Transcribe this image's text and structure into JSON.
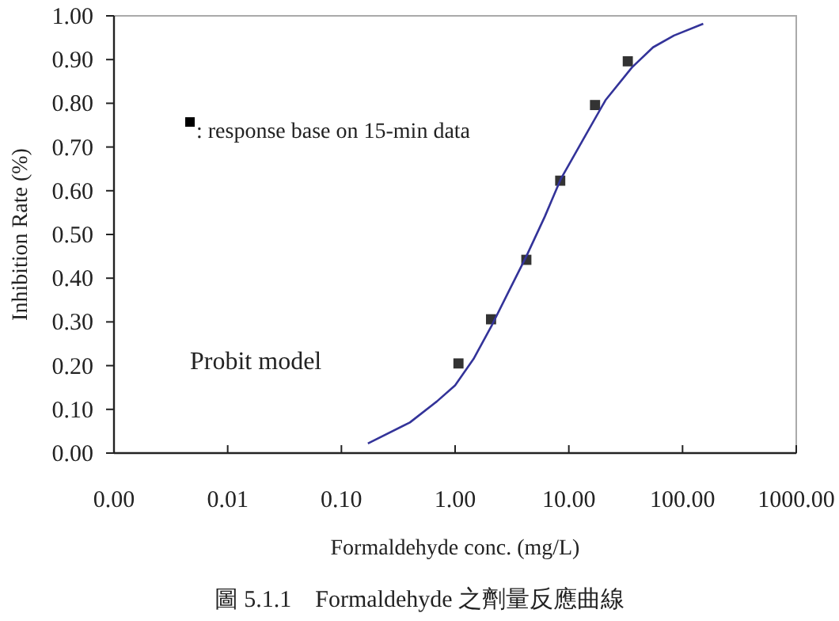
{
  "chart_data": {
    "type": "scatter",
    "xlabel": "Formaldehyde  conc. (mg/L)",
    "ylabel": "Inhibition Rate (%)",
    "log": "x",
    "xlim": [
      0.001,
      1000
    ],
    "ylim": [
      0,
      1
    ],
    "xticks": [
      {
        "value": 0.001,
        "label": "0.00"
      },
      {
        "value": 0.01,
        "label": "0.01"
      },
      {
        "value": 0.1,
        "label": "0.10"
      },
      {
        "value": 1,
        "label": "1.00"
      },
      {
        "value": 10,
        "label": "10.00"
      },
      {
        "value": 100,
        "label": "100.00"
      },
      {
        "value": 1000,
        "label": "1000.00"
      }
    ],
    "yticks": [
      {
        "value": 0,
        "label": "0.00"
      },
      {
        "value": 0.1,
        "label": "0.10"
      },
      {
        "value": 0.2,
        "label": "0.20"
      },
      {
        "value": 0.3,
        "label": "0.30"
      },
      {
        "value": 0.4,
        "label": "0.40"
      },
      {
        "value": 0.5,
        "label": "0.50"
      },
      {
        "value": 0.6,
        "label": "0.60"
      },
      {
        "value": 0.7,
        "label": "0.70"
      },
      {
        "value": 0.8,
        "label": "0.80"
      },
      {
        "value": 0.9,
        "label": "0.90"
      },
      {
        "value": 1,
        "label": "1.00"
      }
    ],
    "grid": false,
    "legend": "top left",
    "series": [
      {
        "name": ": response base on 15-min data",
        "marker": "square",
        "color": "#333333",
        "x": [
          1.07,
          2.07,
          4.23,
          8.4,
          17,
          33
        ],
        "values": [
          0.205,
          0.306,
          0.442,
          0.623,
          0.796,
          0.896
        ]
      },
      {
        "type": "line",
        "marker": "none",
        "line_style": "solid",
        "color": "#333399",
        "x": [
          0.171,
          0.4,
          0.69,
          1,
          1.45,
          2.11,
          3.07,
          4.23,
          6.15,
          8.47,
          13.7,
          21,
          35.9,
          55,
          84,
          152
        ],
        "values": [
          0.022,
          0.07,
          0.118,
          0.155,
          0.215,
          0.293,
          0.378,
          0.45,
          0.541,
          0.626,
          0.722,
          0.807,
          0.882,
          0.928,
          0.955,
          0.982
        ]
      }
    ],
    "annotations": [
      "Probit model",
      "圖 5.1.1　Formaldehyde 之劑量反應曲線"
    ]
  }
}
